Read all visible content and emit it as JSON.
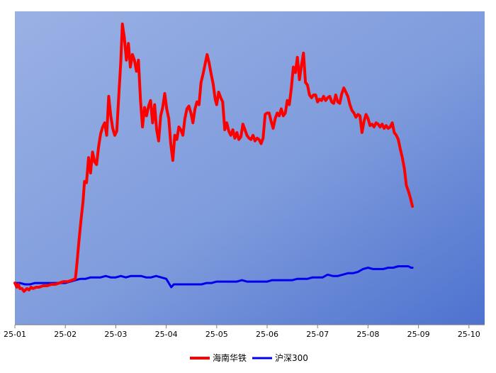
{
  "chart_data": {
    "type": "line",
    "title": "",
    "xlabel": "",
    "ylabel": "",
    "grid": false,
    "legend_position": "bottom-center",
    "x_ticks": [
      "25-01",
      "25-02",
      "25-03",
      "25-04",
      "25-05",
      "25-06",
      "25-07",
      "25-08",
      "25-09",
      "25-10"
    ],
    "ylim": [
      0.7,
      2.95
    ],
    "series": [
      {
        "name": "海南华铁",
        "color": "#ff0000",
        "points": [
          [
            0,
            1.0
          ],
          [
            0.04,
            0.97
          ],
          [
            0.07,
            0.99
          ],
          [
            0.1,
            0.96
          ],
          [
            0.14,
            0.96
          ],
          [
            0.18,
            0.94
          ],
          [
            0.24,
            0.96
          ],
          [
            0.28,
            0.95
          ],
          [
            0.32,
            0.97
          ],
          [
            0.36,
            0.96
          ],
          [
            0.42,
            0.97
          ],
          [
            0.48,
            0.97
          ],
          [
            0.56,
            0.98
          ],
          [
            0.64,
            0.98
          ],
          [
            0.72,
            0.99
          ],
          [
            0.8,
            0.99
          ],
          [
            0.88,
            1.0
          ],
          [
            0.96,
            1.01
          ],
          [
            1.05,
            1.01
          ],
          [
            1.13,
            1.02
          ],
          [
            1.2,
            1.03
          ],
          [
            1.23,
            1.14
          ],
          [
            1.27,
            1.3
          ],
          [
            1.31,
            1.45
          ],
          [
            1.35,
            1.58
          ],
          [
            1.38,
            1.73
          ],
          [
            1.42,
            1.72
          ],
          [
            1.46,
            1.9
          ],
          [
            1.5,
            1.79
          ],
          [
            1.54,
            1.94
          ],
          [
            1.58,
            1.87
          ],
          [
            1.62,
            1.85
          ],
          [
            1.66,
            1.98
          ],
          [
            1.7,
            2.07
          ],
          [
            1.74,
            2.12
          ],
          [
            1.78,
            2.15
          ],
          [
            1.82,
            2.06
          ],
          [
            1.86,
            2.34
          ],
          [
            1.9,
            2.2
          ],
          [
            1.94,
            2.11
          ],
          [
            1.98,
            2.06
          ],
          [
            2.02,
            2.09
          ],
          [
            2.06,
            2.35
          ],
          [
            2.1,
            2.59
          ],
          [
            2.13,
            2.86
          ],
          [
            2.17,
            2.76
          ],
          [
            2.21,
            2.6
          ],
          [
            2.25,
            2.72
          ],
          [
            2.29,
            2.55
          ],
          [
            2.33,
            2.64
          ],
          [
            2.37,
            2.6
          ],
          [
            2.41,
            2.52
          ],
          [
            2.45,
            2.6
          ],
          [
            2.49,
            2.31
          ],
          [
            2.53,
            2.12
          ],
          [
            2.57,
            2.26
          ],
          [
            2.61,
            2.2
          ],
          [
            2.65,
            2.27
          ],
          [
            2.69,
            2.31
          ],
          [
            2.73,
            2.15
          ],
          [
            2.77,
            2.28
          ],
          [
            2.81,
            2.1
          ],
          [
            2.85,
            2.02
          ],
          [
            2.89,
            2.2
          ],
          [
            2.93,
            2.26
          ],
          [
            2.97,
            2.36
          ],
          [
            3.01,
            2.25
          ],
          [
            3.05,
            2.18
          ],
          [
            3.09,
            2.0
          ],
          [
            3.13,
            1.88
          ],
          [
            3.17,
            2.06
          ],
          [
            3.21,
            2.03
          ],
          [
            3.25,
            2.12
          ],
          [
            3.29,
            2.1
          ],
          [
            3.33,
            2.06
          ],
          [
            3.37,
            2.18
          ],
          [
            3.41,
            2.25
          ],
          [
            3.45,
            2.27
          ],
          [
            3.49,
            2.22
          ],
          [
            3.53,
            2.15
          ],
          [
            3.57,
            2.25
          ],
          [
            3.61,
            2.3
          ],
          [
            3.65,
            2.28
          ],
          [
            3.69,
            2.44
          ],
          [
            3.73,
            2.5
          ],
          [
            3.77,
            2.57
          ],
          [
            3.81,
            2.64
          ],
          [
            3.85,
            2.58
          ],
          [
            3.89,
            2.5
          ],
          [
            3.93,
            2.43
          ],
          [
            3.97,
            2.32
          ],
          [
            4.0,
            2.28
          ],
          [
            4.04,
            2.37
          ],
          [
            4.08,
            2.33
          ],
          [
            4.12,
            2.3
          ],
          [
            4.16,
            2.1
          ],
          [
            4.2,
            2.15
          ],
          [
            4.24,
            2.09
          ],
          [
            4.28,
            2.06
          ],
          [
            4.32,
            2.1
          ],
          [
            4.36,
            2.04
          ],
          [
            4.4,
            2.08
          ],
          [
            4.44,
            2.03
          ],
          [
            4.48,
            2.05
          ],
          [
            4.52,
            2.14
          ],
          [
            4.56,
            2.1
          ],
          [
            4.6,
            2.06
          ],
          [
            4.64,
            2.04
          ],
          [
            4.68,
            2.03
          ],
          [
            4.72,
            2.06
          ],
          [
            4.76,
            2.02
          ],
          [
            4.8,
            2.04
          ],
          [
            4.84,
            2.03
          ],
          [
            4.88,
            2.0
          ],
          [
            4.92,
            2.04
          ],
          [
            4.96,
            2.21
          ],
          [
            5.0,
            2.22
          ],
          [
            5.04,
            2.22
          ],
          [
            5.08,
            2.16
          ],
          [
            5.12,
            2.11
          ],
          [
            5.16,
            2.18
          ],
          [
            5.2,
            2.22
          ],
          [
            5.24,
            2.2
          ],
          [
            5.28,
            2.25
          ],
          [
            5.32,
            2.2
          ],
          [
            5.36,
            2.22
          ],
          [
            5.4,
            2.31
          ],
          [
            5.44,
            2.28
          ],
          [
            5.48,
            2.4
          ],
          [
            5.52,
            2.55
          ],
          [
            5.56,
            2.51
          ],
          [
            5.6,
            2.62
          ],
          [
            5.64,
            2.46
          ],
          [
            5.68,
            2.56
          ],
          [
            5.72,
            2.65
          ],
          [
            5.76,
            2.44
          ],
          [
            5.8,
            2.42
          ],
          [
            5.84,
            2.35
          ],
          [
            5.88,
            2.33
          ],
          [
            5.92,
            2.35
          ],
          [
            5.96,
            2.35
          ],
          [
            6.0,
            2.3
          ],
          [
            6.04,
            2.32
          ],
          [
            6.08,
            2.31
          ],
          [
            6.12,
            2.34
          ],
          [
            6.16,
            2.31
          ],
          [
            6.2,
            2.33
          ],
          [
            6.24,
            2.34
          ],
          [
            6.28,
            2.3
          ],
          [
            6.32,
            2.29
          ],
          [
            6.36,
            2.35
          ],
          [
            6.4,
            2.3
          ],
          [
            6.44,
            2.29
          ],
          [
            6.48,
            2.36
          ],
          [
            6.52,
            2.4
          ],
          [
            6.56,
            2.37
          ],
          [
            6.6,
            2.34
          ],
          [
            6.64,
            2.28
          ],
          [
            6.68,
            2.24
          ],
          [
            6.72,
            2.22
          ],
          [
            6.76,
            2.19
          ],
          [
            6.8,
            2.21
          ],
          [
            6.84,
            2.2
          ],
          [
            6.88,
            2.08
          ],
          [
            6.92,
            2.16
          ],
          [
            6.96,
            2.21
          ],
          [
            7.0,
            2.18
          ],
          [
            7.04,
            2.13
          ],
          [
            7.08,
            2.14
          ],
          [
            7.12,
            2.12
          ],
          [
            7.16,
            2.15
          ],
          [
            7.2,
            2.14
          ],
          [
            7.24,
            2.12
          ],
          [
            7.28,
            2.14
          ],
          [
            7.32,
            2.11
          ],
          [
            7.36,
            2.13
          ],
          [
            7.4,
            2.11
          ],
          [
            7.44,
            2.12
          ],
          [
            7.48,
            2.15
          ],
          [
            7.52,
            2.08
          ],
          [
            7.56,
            2.06
          ],
          [
            7.6,
            2.03
          ],
          [
            7.64,
            1.96
          ],
          [
            7.68,
            1.9
          ],
          [
            7.72,
            1.82
          ],
          [
            7.76,
            1.7
          ],
          [
            7.8,
            1.66
          ],
          [
            7.84,
            1.61
          ],
          [
            7.88,
            1.55
          ]
        ]
      },
      {
        "name": "沪深300",
        "color": "#0000ee",
        "points": [
          [
            0,
            1.0
          ],
          [
            0.1,
            1.0
          ],
          [
            0.2,
            0.99
          ],
          [
            0.3,
            0.99
          ],
          [
            0.4,
            1.0
          ],
          [
            0.5,
            1.0
          ],
          [
            0.6,
            1.0
          ],
          [
            0.7,
            1.0
          ],
          [
            0.8,
            1.0
          ],
          [
            0.9,
            1.0
          ],
          [
            1.0,
            1.0
          ],
          [
            1.1,
            1.01
          ],
          [
            1.2,
            1.02
          ],
          [
            1.3,
            1.03
          ],
          [
            1.4,
            1.03
          ],
          [
            1.5,
            1.04
          ],
          [
            1.6,
            1.04
          ],
          [
            1.7,
            1.04
          ],
          [
            1.8,
            1.05
          ],
          [
            1.9,
            1.04
          ],
          [
            2.0,
            1.04
          ],
          [
            2.1,
            1.05
          ],
          [
            2.2,
            1.04
          ],
          [
            2.3,
            1.05
          ],
          [
            2.4,
            1.05
          ],
          [
            2.5,
            1.05
          ],
          [
            2.6,
            1.04
          ],
          [
            2.7,
            1.04
          ],
          [
            2.8,
            1.05
          ],
          [
            2.9,
            1.04
          ],
          [
            3.0,
            1.03
          ],
          [
            3.05,
            1.0
          ],
          [
            3.1,
            0.97
          ],
          [
            3.15,
            0.99
          ],
          [
            3.2,
            0.99
          ],
          [
            3.3,
            0.99
          ],
          [
            3.4,
            0.99
          ],
          [
            3.5,
            0.99
          ],
          [
            3.6,
            0.99
          ],
          [
            3.7,
            0.99
          ],
          [
            3.8,
            1.0
          ],
          [
            3.9,
            1.0
          ],
          [
            4.0,
            1.01
          ],
          [
            4.1,
            1.01
          ],
          [
            4.2,
            1.01
          ],
          [
            4.3,
            1.01
          ],
          [
            4.4,
            1.01
          ],
          [
            4.5,
            1.02
          ],
          [
            4.6,
            1.01
          ],
          [
            4.7,
            1.01
          ],
          [
            4.8,
            1.01
          ],
          [
            4.9,
            1.01
          ],
          [
            5.0,
            1.01
          ],
          [
            5.1,
            1.02
          ],
          [
            5.2,
            1.02
          ],
          [
            5.3,
            1.02
          ],
          [
            5.4,
            1.02
          ],
          [
            5.5,
            1.02
          ],
          [
            5.6,
            1.03
          ],
          [
            5.7,
            1.03
          ],
          [
            5.8,
            1.03
          ],
          [
            5.9,
            1.04
          ],
          [
            6.0,
            1.04
          ],
          [
            6.1,
            1.04
          ],
          [
            6.2,
            1.06
          ],
          [
            6.3,
            1.05
          ],
          [
            6.4,
            1.05
          ],
          [
            6.5,
            1.06
          ],
          [
            6.6,
            1.07
          ],
          [
            6.7,
            1.07
          ],
          [
            6.8,
            1.08
          ],
          [
            6.9,
            1.1
          ],
          [
            7.0,
            1.11
          ],
          [
            7.1,
            1.1
          ],
          [
            7.2,
            1.1
          ],
          [
            7.3,
            1.1
          ],
          [
            7.4,
            1.11
          ],
          [
            7.5,
            1.11
          ],
          [
            7.6,
            1.12
          ],
          [
            7.7,
            1.12
          ],
          [
            7.8,
            1.12
          ],
          [
            7.85,
            1.11
          ],
          [
            7.88,
            1.11
          ]
        ]
      }
    ]
  }
}
